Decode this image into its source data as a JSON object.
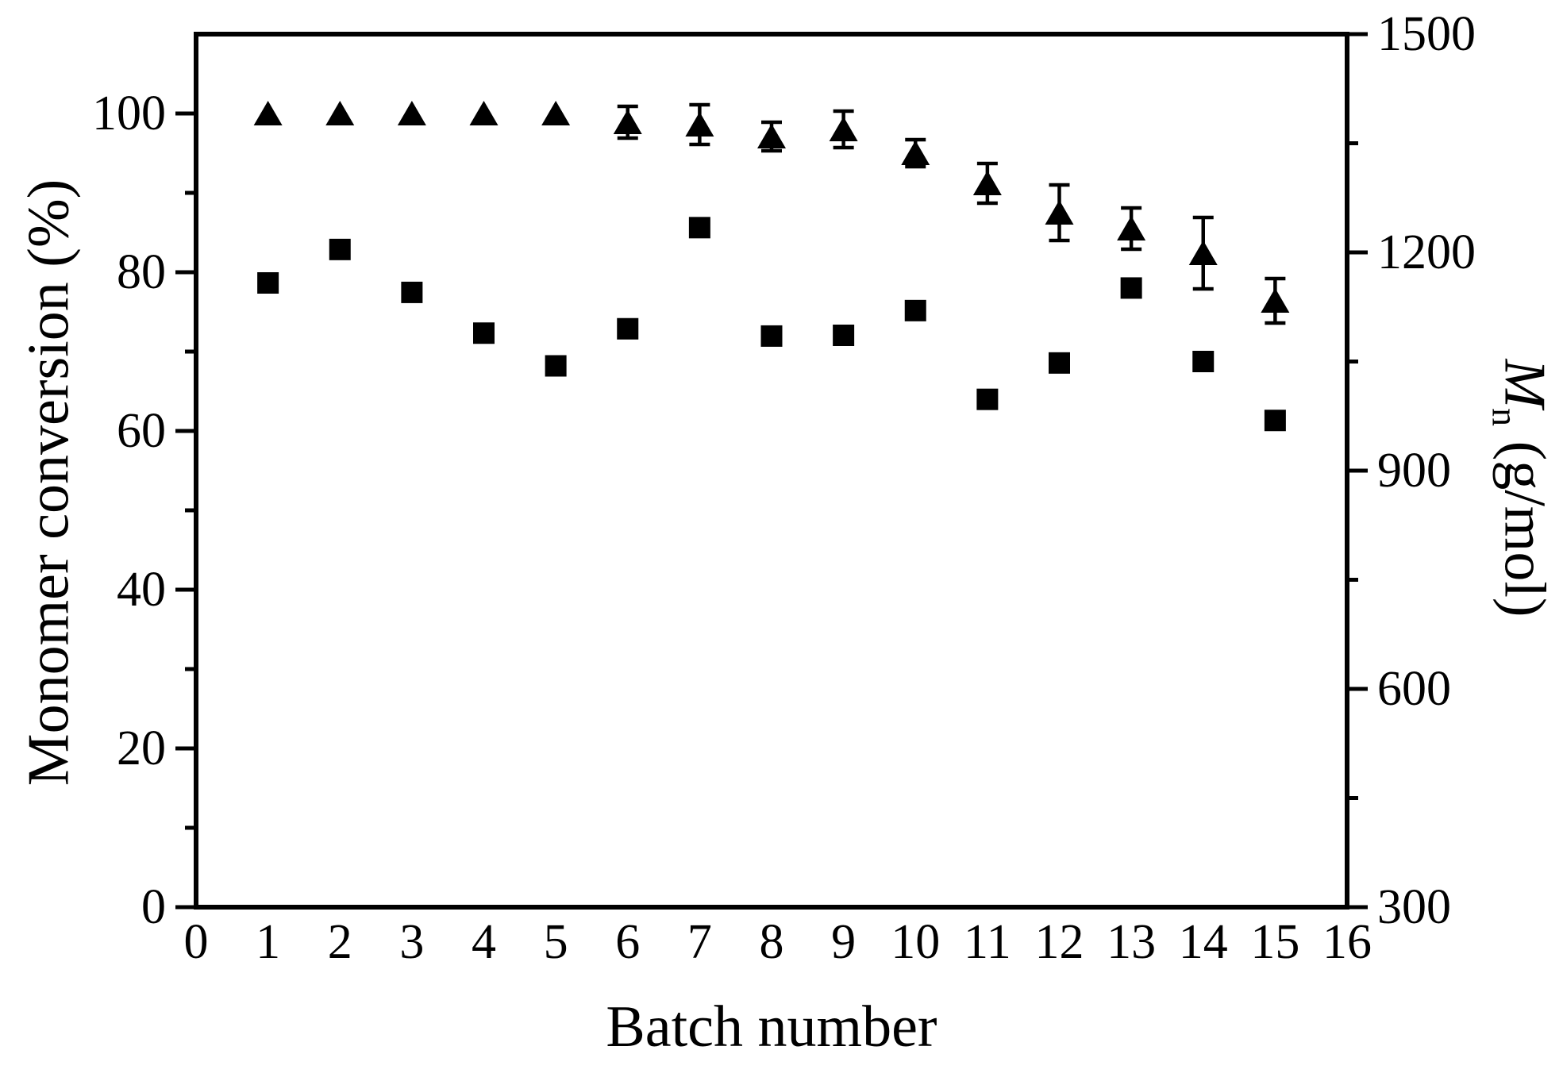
{
  "figure": {
    "background_color": "#ffffff",
    "ink_color": "#000000"
  },
  "axes": {
    "x": {
      "label": "Batch number",
      "min": 0,
      "max": 16,
      "tick_labels": [
        "0",
        "1",
        "2",
        "3",
        "4",
        "5",
        "6",
        "7",
        "8",
        "9",
        "10",
        "11",
        "12",
        "13",
        "14",
        "15",
        "16"
      ]
    },
    "y_left": {
      "label": "Monomer conversion (%)",
      "min": 0,
      "max": 110,
      "major_ticks": [
        0,
        20,
        40,
        60,
        80,
        100
      ],
      "minor_tick_step": 10
    },
    "y_right": {
      "label_symbol": "M",
      "label_subscript": "n",
      "label_units": " (g/mol)",
      "min": 300,
      "max": 1500,
      "major_ticks": [
        300,
        600,
        900,
        1200,
        1500
      ],
      "minor_tick_step": 150
    }
  },
  "chart_data": {
    "type": "scatter",
    "title": "",
    "xlabel": "Batch number",
    "ylabel_left": "Monomer conversion (%)",
    "ylabel_right": "Mn (g/mol)",
    "x": [
      1,
      2,
      3,
      4,
      5,
      6,
      7,
      8,
      9,
      10,
      11,
      12,
      13,
      14,
      15
    ],
    "xlim": [
      0,
      16
    ],
    "ylim_left": [
      0,
      110
    ],
    "ylim_right": [
      300,
      1500
    ],
    "grid": false,
    "legend": null,
    "series": [
      {
        "name": "Monomer conversion",
        "marker": "triangle",
        "axis": "left",
        "color": "#000000",
        "values": [
          100,
          100,
          100,
          100,
          100,
          98.9,
          98.6,
          97.1,
          98.0,
          95.0,
          91.2,
          87.5,
          85.5,
          82.4,
          76.4
        ],
        "errors": [
          0,
          0,
          0,
          0,
          0,
          2.0,
          2.5,
          1.8,
          2.3,
          1.7,
          2.5,
          3.5,
          2.6,
          4.5,
          2.8
        ]
      },
      {
        "name": "Mn",
        "marker": "square",
        "axis": "right",
        "color": "#000000",
        "values": [
          1158,
          1204,
          1145,
          1089,
          1044,
          1095,
          1234,
          1085,
          1086,
          1120,
          998,
          1048,
          1151,
          1050,
          969
        ],
        "errors": [
          0,
          0,
          0,
          0,
          0,
          0,
          0,
          0,
          0,
          0,
          0,
          0,
          0,
          0,
          0
        ]
      }
    ]
  }
}
